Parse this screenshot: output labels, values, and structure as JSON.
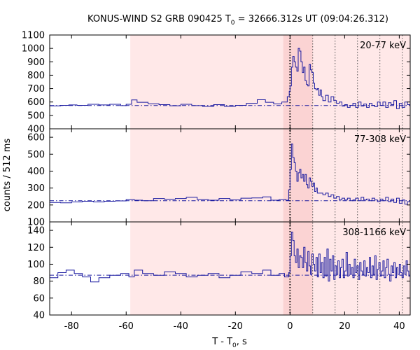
{
  "chart_data": {
    "type": "line",
    "title": {
      "main": "KONUS-WIND S2 GRB 090425 T",
      "sub": "0",
      "rest": " = 32666.312s UT (09:04:26.312)"
    },
    "xlabel": {
      "main": "T - T",
      "sub": "0",
      "rest": ", s"
    },
    "ylabel": "counts / 512 ms",
    "xlim": [
      -88,
      44
    ],
    "xticks": [
      -80,
      -60,
      -40,
      -20,
      0,
      20,
      40
    ],
    "colors": {
      "series": "#1a1aa0",
      "background_band": "#ffe8e8",
      "burst_band": "#fbd3d3",
      "frame": "#000000"
    },
    "background_interval": [
      -58.5,
      44
    ],
    "burst_interval": [
      -2.5,
      8.3
    ],
    "trigger_line": 0,
    "interval_markers": [
      8.3,
      16.5,
      24.7,
      32.9,
      41.1
    ],
    "panels": [
      {
        "band": "20-77 keV",
        "ylim": [
          400,
          1100
        ],
        "yticks": [
          400,
          500,
          600,
          700,
          800,
          900,
          1000,
          1100
        ],
        "background_level": 574,
        "pre": [
          [
            -88,
            571
          ],
          [
            -84,
            575
          ],
          [
            -81,
            578
          ],
          [
            -78,
            575
          ],
          [
            -74,
            583
          ],
          [
            -70,
            578
          ],
          [
            -66,
            583
          ],
          [
            -62,
            573
          ],
          [
            -60,
            583
          ],
          [
            -58,
            615
          ],
          [
            -56,
            598
          ],
          [
            -52,
            587
          ],
          [
            -48,
            580
          ],
          [
            -44,
            572
          ],
          [
            -40,
            583
          ],
          [
            -36,
            573
          ],
          [
            -32,
            567
          ],
          [
            -28,
            580
          ],
          [
            -24,
            567
          ],
          [
            -20,
            575
          ],
          [
            -16,
            590
          ],
          [
            -12,
            617
          ],
          [
            -9,
            598
          ],
          [
            -6,
            586
          ],
          [
            -3,
            600
          ],
          [
            -1,
            640
          ],
          [
            -0.3,
            680
          ]
        ],
        "post": [
          [
            0,
            720
          ],
          [
            0.5,
            860
          ],
          [
            1,
            940
          ],
          [
            1.5,
            900
          ],
          [
            2,
            860
          ],
          [
            2.5,
            830
          ],
          [
            3,
            1000
          ],
          [
            3.5,
            980
          ],
          [
            4,
            900
          ],
          [
            4.5,
            820
          ],
          [
            5,
            860
          ],
          [
            5.5,
            760
          ],
          [
            6,
            730
          ],
          [
            6.5,
            720
          ],
          [
            7,
            880
          ],
          [
            7.5,
            840
          ],
          [
            8,
            820
          ],
          [
            8.5,
            740
          ],
          [
            9,
            700
          ],
          [
            9.5,
            690
          ],
          [
            10,
            700
          ],
          [
            10.5,
            650
          ],
          [
            11,
            690
          ],
          [
            11.5,
            640
          ],
          [
            12,
            610
          ],
          [
            13,
            650
          ],
          [
            14,
            600
          ],
          [
            15,
            640
          ],
          [
            16,
            610
          ],
          [
            17,
            590
          ],
          [
            18,
            600
          ],
          [
            19,
            570
          ],
          [
            20,
            580
          ],
          [
            21,
            560
          ],
          [
            22,
            575
          ],
          [
            23,
            590
          ],
          [
            24,
            560
          ],
          [
            25,
            600
          ],
          [
            26,
            570
          ],
          [
            27,
            585
          ],
          [
            28,
            560
          ],
          [
            29,
            590
          ],
          [
            30,
            575
          ],
          [
            31,
            565
          ],
          [
            32,
            600
          ],
          [
            33,
            575
          ],
          [
            34,
            600
          ],
          [
            35,
            560
          ],
          [
            36,
            595
          ],
          [
            37,
            580
          ],
          [
            38,
            610
          ],
          [
            39,
            550
          ],
          [
            40,
            590
          ],
          [
            41,
            560
          ],
          [
            42,
            600
          ],
          [
            43,
            580
          ]
        ]
      },
      {
        "band": "77-308 keV",
        "ylim": [
          100,
          650
        ],
        "yticks": [
          100,
          200,
          300,
          400,
          500,
          600
        ],
        "background_level": 225,
        "pre": [
          [
            -88,
            215
          ],
          [
            -84,
            213
          ],
          [
            -80,
            218
          ],
          [
            -76,
            222
          ],
          [
            -72,
            218
          ],
          [
            -68,
            222
          ],
          [
            -64,
            224
          ],
          [
            -60,
            232
          ],
          [
            -57,
            228
          ],
          [
            -54,
            225
          ],
          [
            -50,
            238
          ],
          [
            -46,
            234
          ],
          [
            -42,
            238
          ],
          [
            -38,
            245
          ],
          [
            -34,
            232
          ],
          [
            -30,
            228
          ],
          [
            -26,
            238
          ],
          [
            -22,
            230
          ],
          [
            -18,
            240
          ],
          [
            -14,
            242
          ],
          [
            -10,
            248
          ],
          [
            -7,
            228
          ],
          [
            -4,
            232
          ],
          [
            -1.5,
            228
          ],
          [
            -0.5,
            290
          ]
        ],
        "post": [
          [
            0,
            410
          ],
          [
            0.5,
            560
          ],
          [
            1,
            480
          ],
          [
            1.5,
            450
          ],
          [
            2,
            400
          ],
          [
            2.5,
            340
          ],
          [
            3,
            390
          ],
          [
            3.5,
            410
          ],
          [
            4,
            360
          ],
          [
            4.5,
            380
          ],
          [
            5,
            340
          ],
          [
            5.5,
            380
          ],
          [
            6,
            320
          ],
          [
            6.5,
            300
          ],
          [
            7,
            360
          ],
          [
            7.5,
            340
          ],
          [
            8,
            310
          ],
          [
            8.5,
            330
          ],
          [
            9,
            280
          ],
          [
            9.5,
            300
          ],
          [
            10,
            270
          ],
          [
            11,
            270
          ],
          [
            12,
            260
          ],
          [
            13,
            270
          ],
          [
            14,
            250
          ],
          [
            15,
            260
          ],
          [
            16,
            240
          ],
          [
            17,
            250
          ],
          [
            18,
            230
          ],
          [
            19,
            240
          ],
          [
            20,
            230
          ],
          [
            21,
            240
          ],
          [
            22,
            225
          ],
          [
            23,
            230
          ],
          [
            24,
            240
          ],
          [
            25,
            225
          ],
          [
            26,
            245
          ],
          [
            27,
            230
          ],
          [
            28,
            235
          ],
          [
            29,
            225
          ],
          [
            30,
            240
          ],
          [
            31,
            230
          ],
          [
            32,
            220
          ],
          [
            33,
            235
          ],
          [
            34,
            225
          ],
          [
            35,
            245
          ],
          [
            36,
            220
          ],
          [
            37,
            235
          ],
          [
            38,
            215
          ],
          [
            39,
            240
          ],
          [
            40,
            210
          ],
          [
            41,
            230
          ],
          [
            42,
            205
          ],
          [
            43,
            220
          ]
        ]
      },
      {
        "band": "308-1166 keV",
        "ylim": [
          40,
          150
        ],
        "yticks": [
          40,
          60,
          80,
          100,
          120,
          140
        ],
        "background_level": 87,
        "pre": [
          [
            -88,
            84
          ],
          [
            -85,
            90
          ],
          [
            -82,
            93
          ],
          [
            -79,
            89
          ],
          [
            -76,
            85
          ],
          [
            -73,
            79
          ],
          [
            -70,
            84
          ],
          [
            -66,
            87
          ],
          [
            -62,
            89
          ],
          [
            -59,
            85
          ],
          [
            -57,
            93
          ],
          [
            -54,
            89
          ],
          [
            -50,
            87
          ],
          [
            -46,
            91
          ],
          [
            -42,
            89
          ],
          [
            -38,
            85
          ],
          [
            -34,
            87
          ],
          [
            -30,
            89
          ],
          [
            -26,
            84
          ],
          [
            -22,
            87
          ],
          [
            -18,
            91
          ],
          [
            -14,
            89
          ],
          [
            -10,
            93
          ],
          [
            -7,
            87
          ],
          [
            -4,
            89
          ],
          [
            -2,
            85
          ],
          [
            -0.5,
            90
          ]
        ],
        "post": [
          [
            0,
            110
          ],
          [
            0.5,
            138
          ],
          [
            1,
            128
          ],
          [
            1.5,
            110
          ],
          [
            2,
            102
          ],
          [
            2.5,
            118
          ],
          [
            3,
            96
          ],
          [
            3.5,
            110
          ],
          [
            4,
            108
          ],
          [
            4.5,
            96
          ],
          [
            5,
            120
          ],
          [
            5.5,
            102
          ],
          [
            6,
            92
          ],
          [
            6.5,
            115
          ],
          [
            7,
            98
          ],
          [
            7.5,
            88
          ],
          [
            8,
            112
          ],
          [
            8.5,
            100
          ],
          [
            9,
            92
          ],
          [
            9.5,
            108
          ],
          [
            10,
            85
          ],
          [
            10.5,
            112
          ],
          [
            11,
            90
          ],
          [
            11.5,
            102
          ],
          [
            12,
            84
          ],
          [
            12.5,
            108
          ],
          [
            13,
            86
          ],
          [
            13.5,
            118
          ],
          [
            14,
            80
          ],
          [
            14.5,
            106
          ],
          [
            15,
            92
          ],
          [
            15.5,
            110
          ],
          [
            16,
            82
          ],
          [
            16.5,
            98
          ],
          [
            17,
            88
          ],
          [
            17.5,
            104
          ],
          [
            18,
            84
          ],
          [
            18.5,
            96
          ],
          [
            19,
            106
          ],
          [
            19.5,
            84
          ],
          [
            20,
            92
          ],
          [
            20.5,
            114
          ],
          [
            21,
            86
          ],
          [
            21.5,
            100
          ],
          [
            22,
            88
          ],
          [
            22.5,
            96
          ],
          [
            23,
            84
          ],
          [
            23.5,
            106
          ],
          [
            24,
            90
          ],
          [
            24.5,
            98
          ],
          [
            25,
            82
          ],
          [
            25.5,
            102
          ],
          [
            26,
            92
          ],
          [
            26.5,
            88
          ],
          [
            27,
            104
          ],
          [
            27.5,
            86
          ],
          [
            28,
            96
          ],
          [
            28.5,
            90
          ],
          [
            29,
            108
          ],
          [
            29.5,
            84
          ],
          [
            30,
            98
          ],
          [
            30.5,
            88
          ],
          [
            31,
            110
          ],
          [
            31.5,
            82
          ],
          [
            32,
            94
          ],
          [
            32.5,
            102
          ],
          [
            33,
            86
          ],
          [
            33.5,
            92
          ],
          [
            34,
            104
          ],
          [
            34.5,
            84
          ],
          [
            35,
            96
          ],
          [
            35.5,
            106
          ],
          [
            36,
            88
          ],
          [
            36.5,
            80
          ],
          [
            37,
            98
          ],
          [
            37.5,
            90
          ],
          [
            38,
            102
          ],
          [
            38.5,
            84
          ],
          [
            39,
            96
          ],
          [
            39.5,
            88
          ],
          [
            40,
            100
          ],
          [
            40.5,
            90
          ],
          [
            41,
            84
          ],
          [
            41.5,
            98
          ],
          [
            42,
            88
          ],
          [
            42.5,
            104
          ],
          [
            43,
            92
          ],
          [
            43.5,
            86
          ]
        ]
      }
    ]
  }
}
